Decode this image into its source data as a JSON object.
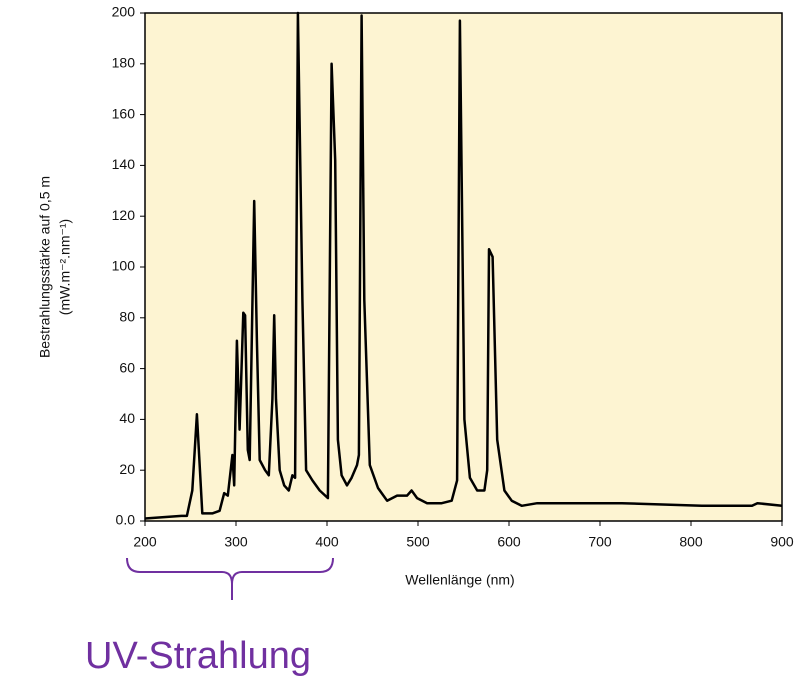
{
  "chart_data": {
    "type": "line",
    "y_label_lines": [
      "Bestrahlungsstärke auf 0,5 m",
      "(mW.m⁻².nm⁻¹)"
    ],
    "x_label": "Wellenlänge (nm)",
    "annotation": "UV-Strahlung",
    "x": [
      200,
      240,
      246,
      252,
      257,
      263,
      274,
      282,
      287,
      291,
      296,
      298,
      301,
      304,
      308,
      310,
      313,
      315,
      320,
      323,
      326,
      332,
      336,
      340,
      342,
      344,
      348,
      353,
      358,
      362,
      365,
      368,
      373,
      377,
      384,
      392,
      401,
      405,
      409,
      412,
      416,
      422,
      427,
      433,
      435,
      438,
      441,
      447,
      456,
      466,
      477,
      488,
      493,
      499,
      510,
      526,
      537,
      543,
      546,
      551,
      557,
      565,
      573,
      576,
      578,
      582,
      587,
      595,
      603,
      614,
      631,
      680,
      691,
      724,
      812,
      867,
      873,
      900
    ],
    "series": [
      {
        "color": "#000000",
        "values": [
          1,
          2,
          2,
          12,
          42,
          3,
          3,
          4,
          11,
          10,
          26,
          14,
          71,
          36,
          82,
          81,
          28,
          24,
          126,
          71,
          24,
          20,
          18,
          48,
          81,
          48,
          20,
          14,
          12,
          18,
          17,
          200,
          87,
          20,
          16,
          12,
          9,
          180,
          142,
          32,
          18,
          14,
          17,
          22,
          26,
          199,
          87,
          22,
          13,
          8,
          10,
          10,
          12,
          9,
          7,
          7,
          8,
          16,
          197,
          40,
          17,
          12,
          12,
          20,
          107,
          104,
          32,
          12,
          8,
          6,
          7,
          7,
          7,
          7,
          6,
          6,
          7,
          6
        ]
      }
    ],
    "xlim": [
      200,
      900
    ],
    "xticks": [
      200,
      300,
      400,
      500,
      600,
      700,
      800,
      900
    ],
    "ylim": [
      0,
      200
    ],
    "yticks": [
      {
        "value": 0,
        "label": "0.0"
      },
      20,
      40,
      60,
      80,
      100,
      120,
      140,
      160,
      180,
      200
    ]
  }
}
